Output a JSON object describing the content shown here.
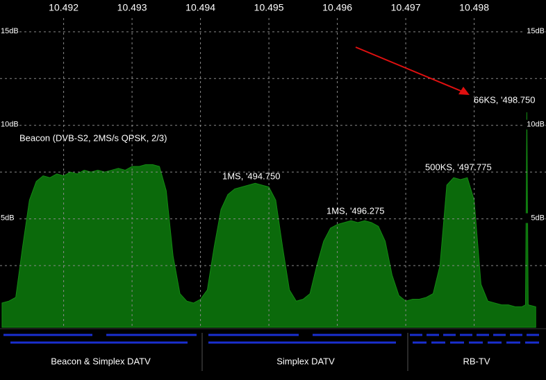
{
  "chart_data": {
    "type": "area",
    "xlim": [
      10.49107,
      10.49905
    ],
    "xticks": [
      10.492,
      10.493,
      10.494,
      10.495,
      10.496,
      10.497,
      10.498
    ],
    "ylim": [
      -0.8,
      16.7
    ],
    "yticks": [
      {
        "value": 15,
        "label": "15dB"
      },
      {
        "value": 10,
        "label": "10dB"
      },
      {
        "value": 5,
        "label": "5dB"
      }
    ],
    "minor_yticks": [
      12.5,
      7.5,
      2.5
    ],
    "grid": true,
    "color": "#0b6a0b",
    "x": [
      10.4911,
      10.4912,
      10.4913,
      10.4914,
      10.4915,
      10.4916,
      10.4917,
      10.4918,
      10.4919,
      10.492,
      10.4921,
      10.4922,
      10.4923,
      10.4924,
      10.4925,
      10.4926,
      10.4927,
      10.4928,
      10.4929,
      10.493,
      10.4931,
      10.4932,
      10.4933,
      10.4934,
      10.4935,
      10.4936,
      10.4937,
      10.4938,
      10.4939,
      10.494,
      10.4941,
      10.4942,
      10.4943,
      10.4944,
      10.4945,
      10.4946,
      10.4947,
      10.4948,
      10.4949,
      10.495,
      10.4951,
      10.4952,
      10.4953,
      10.4954,
      10.4955,
      10.4956,
      10.4957,
      10.4958,
      10.4959,
      10.496,
      10.4961,
      10.4962,
      10.4963,
      10.4964,
      10.4965,
      10.4966,
      10.4967,
      10.4968,
      10.4969,
      10.497,
      10.4971,
      10.4972,
      10.4973,
      10.4974,
      10.4975,
      10.4976,
      10.4977,
      10.4978,
      10.4979,
      10.498,
      10.4981,
      10.4982,
      10.4983,
      10.4984,
      10.4985,
      10.4986,
      10.4987,
      10.49875,
      10.49877,
      10.49879,
      10.4989
    ],
    "values": [
      0.5,
      0.6,
      0.8,
      3.5,
      6.0,
      7.0,
      7.3,
      7.2,
      7.4,
      7.3,
      7.5,
      7.4,
      7.6,
      7.5,
      7.6,
      7.5,
      7.6,
      7.7,
      7.6,
      7.8,
      7.8,
      7.9,
      7.9,
      7.8,
      6.5,
      3.0,
      1.0,
      0.6,
      0.5,
      0.7,
      1.2,
      3.5,
      5.5,
      6.3,
      6.6,
      6.7,
      6.8,
      6.9,
      6.8,
      6.7,
      6.0,
      3.5,
      1.2,
      0.6,
      0.7,
      1.0,
      2.5,
      3.8,
      4.5,
      4.7,
      4.8,
      4.9,
      4.8,
      4.9,
      4.8,
      4.6,
      3.8,
      2.0,
      0.9,
      0.6,
      0.7,
      0.7,
      0.8,
      1.0,
      2.5,
      6.8,
      7.2,
      7.1,
      7.2,
      6.0,
      1.5,
      0.6,
      0.5,
      0.4,
      0.4,
      0.3,
      0.3,
      0.4,
      10.7,
      0.4,
      0.3
    ],
    "annotations": [
      "Beacon (DVB-S2, 2MS/s QPSK, 2/3)",
      "1MS, '494.750",
      "1MS, '496.275",
      "500KS, '497.775",
      "66KS, '498.750"
    ]
  },
  "band_plan": [
    "Beacon & Simplex DATV",
    "Simplex DATV",
    "RB-TV"
  ]
}
